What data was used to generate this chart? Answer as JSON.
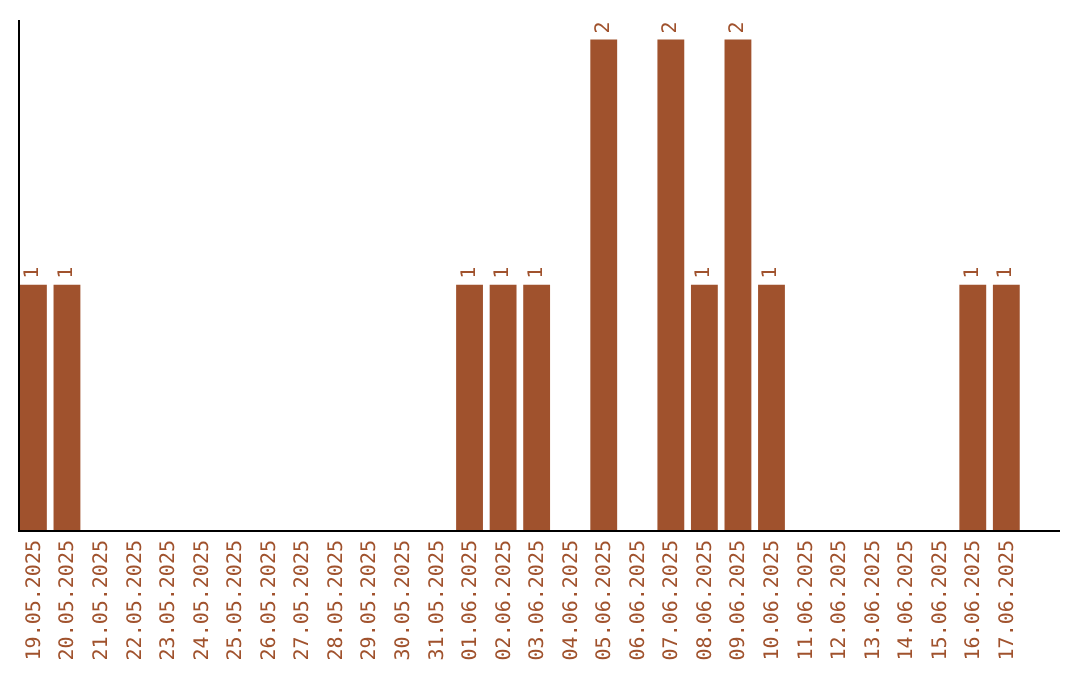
{
  "chart_data": {
    "type": "bar",
    "categories": [
      "19.05.2025",
      "20.05.2025",
      "21.05.2025",
      "22.05.2025",
      "23.05.2025",
      "24.05.2025",
      "25.05.2025",
      "26.05.2025",
      "27.05.2025",
      "28.05.2025",
      "29.05.2025",
      "30.05.2025",
      "31.05.2025",
      "01.06.2025",
      "02.06.2025",
      "03.06.2025",
      "04.06.2025",
      "05.06.2025",
      "06.06.2025",
      "07.06.2025",
      "08.06.2025",
      "09.06.2025",
      "10.06.2025",
      "11.06.2025",
      "12.06.2025",
      "13.06.2025",
      "14.06.2025",
      "15.06.2025",
      "16.06.2025",
      "17.06.2025"
    ],
    "values": [
      1,
      1,
      0,
      0,
      0,
      0,
      0,
      0,
      0,
      0,
      0,
      0,
      0,
      1,
      1,
      1,
      0,
      2,
      0,
      2,
      1,
      2,
      1,
      0,
      0,
      0,
      0,
      0,
      1,
      1
    ],
    "value_labels": [
      "1",
      "1",
      null,
      null,
      null,
      null,
      null,
      null,
      null,
      null,
      null,
      null,
      null,
      "1",
      "1",
      "1",
      null,
      "2",
      null,
      "2",
      "1",
      "2",
      "1",
      null,
      null,
      null,
      null,
      null,
      "1",
      "1"
    ],
    "color": "#a0522d",
    "legend": false
  }
}
